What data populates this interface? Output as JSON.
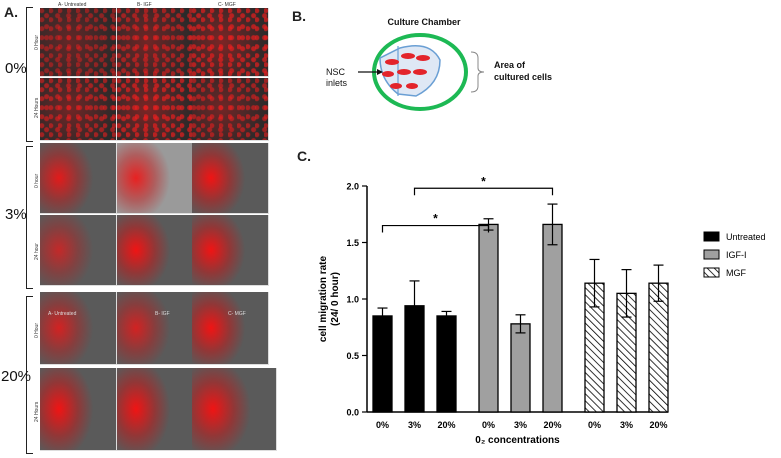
{
  "panel_a": {
    "letter": "A.",
    "column_headers": [
      "A- Untreated",
      "B- IGF",
      "C- MGF"
    ],
    "blocks": [
      {
        "oxygen": "0%",
        "row_labels": [
          "0 Hour",
          "24 Hours"
        ]
      },
      {
        "oxygen": "3%",
        "row_labels": [
          "0 hour",
          "24 hour"
        ]
      },
      {
        "oxygen": "20%",
        "row_labels": [
          "0 Hour",
          "24 Hours"
        ]
      }
    ],
    "inner_headers": [
      "A- Untreated",
      "B- IGF",
      "C- MGF"
    ]
  },
  "panel_b": {
    "letter": "B.",
    "title": "Culture Chamber",
    "inlet_label_1": "NSC",
    "inlet_label_2": "inlets",
    "area_label_1": "Area of",
    "area_label_2": "cultured cells"
  },
  "panel_c": {
    "letter": "C."
  },
  "chart_data": {
    "type": "bar",
    "ylabel": "cell migration rate (24/ 0  hour)",
    "ylabel_line1": "cell migration rate",
    "ylabel_line2": "(24/ 0  hour)",
    "xlabel": "0₂ concentrations",
    "ylim": [
      0,
      2.0
    ],
    "yticks": [
      "0.0",
      "0.5",
      "1.0",
      "1.5",
      "2.0"
    ],
    "categories": [
      "0%",
      "3%",
      "20%"
    ],
    "series": [
      {
        "name": "Untreated",
        "color": "#000000",
        "values": [
          0.85,
          0.94,
          0.85
        ],
        "errors": [
          0.07,
          0.22,
          0.04
        ]
      },
      {
        "name": "IGF-I",
        "color": "#a0a0a0",
        "values": [
          1.66,
          0.78,
          1.66
        ],
        "errors": [
          0.05,
          0.08,
          0.18
        ]
      },
      {
        "name": "MGF",
        "color": "#ffffff",
        "pattern": "hatch",
        "values": [
          1.14,
          1.05,
          1.14
        ],
        "errors": [
          0.21,
          0.21,
          0.16
        ]
      }
    ],
    "significance": [
      "*",
      "*"
    ],
    "legend_position": "right"
  }
}
